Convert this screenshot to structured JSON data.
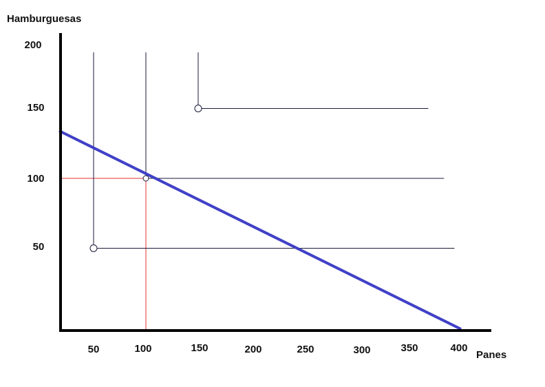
{
  "chart_data": {
    "type": "line",
    "xlabel": "Panes",
    "ylabel": "Hamburguesas",
    "x_ticks": [
      50,
      100,
      150,
      200,
      250,
      300,
      350,
      400
    ],
    "y_ticks": [
      50,
      100,
      150,
      200
    ],
    "series": [
      {
        "x": [
          0,
          400
        ],
        "y": [
          133,
          0
        ]
      }
    ],
    "indifference_curves": [
      {
        "corner": [
          50,
          50
        ],
        "x": [
          50,
          50,
          395
        ],
        "y": [
          200,
          50,
          50
        ]
      },
      {
        "corner": [
          100,
          100
        ],
        "x": [
          100,
          100,
          385
        ],
        "y": [
          200,
          100,
          100
        ]
      },
      {
        "corner": [
          150,
          150
        ],
        "x": [
          150,
          150,
          370
        ],
        "y": [
          200,
          150,
          150
        ]
      }
    ],
    "reference_lines": {
      "x": 100,
      "y": 100
    },
    "points": [
      {
        "x": 50,
        "y": 50
      },
      {
        "x": 100,
        "y": 100
      },
      {
        "x": 150,
        "y": 150
      }
    ],
    "colors": {
      "budget_line": "#4040c8",
      "curves": "#1a1a3a",
      "reference": "#e03030",
      "axes": "#000000"
    },
    "grid": false,
    "legend": "none"
  }
}
